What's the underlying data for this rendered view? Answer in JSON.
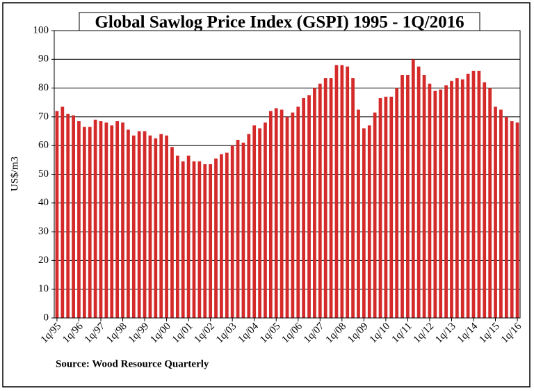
{
  "chart_data": {
    "type": "bar",
    "title": "Global Sawlog Price Index (GSPI) 1995 - 1Q/2016",
    "y_label": "US$/m3",
    "source": "Source: Wood Resource Quarterly",
    "color": "#d42a2a",
    "grid": true,
    "ylim": [
      0,
      100
    ],
    "yticks": [
      0,
      10,
      20,
      30,
      40,
      50,
      60,
      70,
      80,
      90,
      100
    ],
    "categories": [
      "1q/95",
      null,
      null,
      null,
      "1q/96",
      null,
      null,
      null,
      "1q/97",
      null,
      null,
      null,
      "1q/98",
      null,
      null,
      null,
      "1q/99",
      null,
      null,
      null,
      "1q/00",
      null,
      null,
      null,
      "1q/01",
      null,
      null,
      null,
      "1q/02",
      null,
      null,
      null,
      "1q/03",
      null,
      null,
      null,
      "1q/04",
      null,
      null,
      null,
      "1q/05",
      null,
      null,
      null,
      "1q/06",
      null,
      null,
      null,
      "1q/07",
      null,
      null,
      null,
      "1q/08",
      null,
      null,
      null,
      "1q/09",
      null,
      null,
      null,
      "1q/10",
      null,
      null,
      null,
      "1q/11",
      null,
      null,
      null,
      "1q/12",
      null,
      null,
      null,
      "1q/13",
      null,
      null,
      null,
      "1q/14",
      null,
      null,
      null,
      "1q/15",
      null,
      null,
      null,
      "1q/16"
    ],
    "values": [
      72,
      73.5,
      71,
      70.5,
      68.5,
      66.5,
      66.5,
      69,
      68.5,
      68,
      67,
      68.5,
      68,
      65.5,
      63.5,
      65,
      65,
      63.5,
      62.5,
      64,
      63.5,
      59.5,
      56.5,
      54.5,
      56.5,
      54.5,
      54.5,
      53.5,
      53.5,
      55.5,
      57,
      57.5,
      60,
      62,
      61,
      64,
      67,
      66,
      68,
      72,
      73,
      72.5,
      70,
      71.5,
      73.5,
      76.5,
      77.5,
      80,
      81.5,
      83.5,
      83.5,
      88,
      88,
      87.5,
      83.5,
      72.5,
      66,
      67,
      71.5,
      76.5,
      77,
      77,
      80,
      84.5,
      84.5,
      90,
      87.5,
      84.5,
      81.5,
      79,
      79.5,
      81,
      82.5,
      83.5,
      83,
      85,
      86,
      86,
      82,
      80,
      73.5,
      72.5,
      70,
      68.5,
      68
    ]
  }
}
